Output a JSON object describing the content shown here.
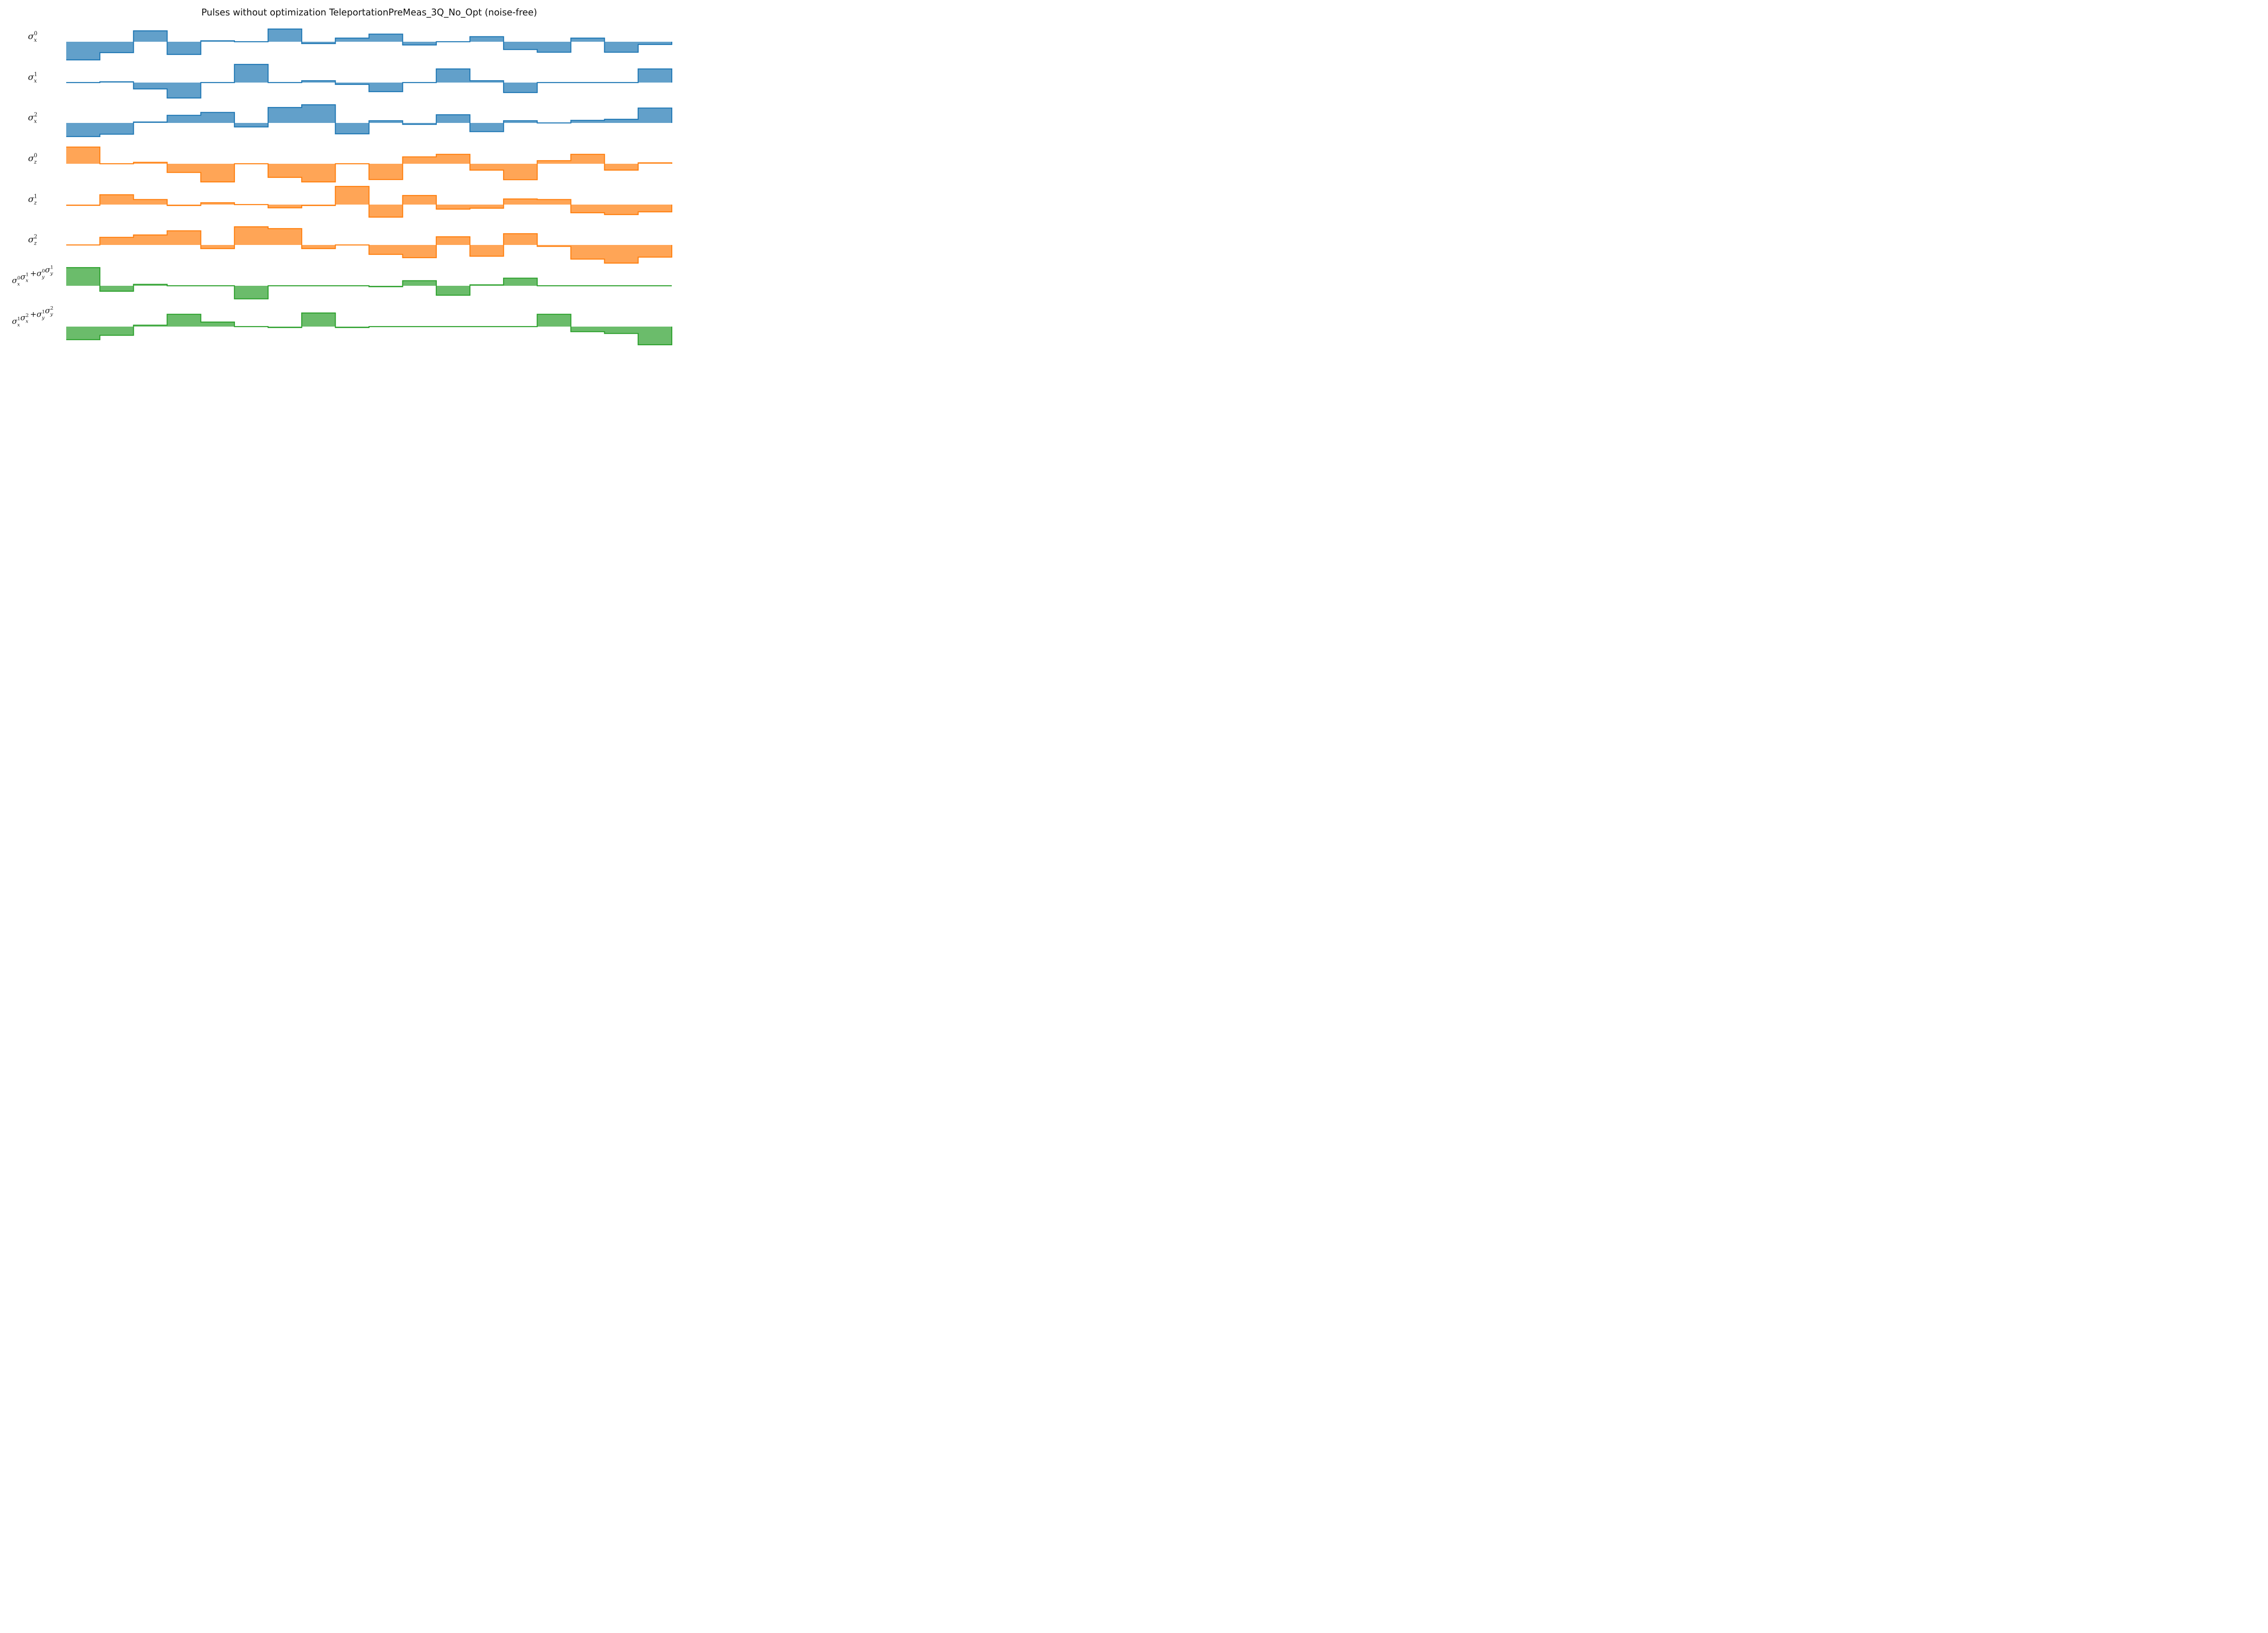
{
  "chart_data": {
    "type": "area",
    "title": "Pulses without optimization TeleportationPreMeas_3Q_No_Opt (noise-free)",
    "xlabel": "",
    "ylabel": "",
    "grid": false,
    "legend": "none",
    "x_segments": 18,
    "colors": {
      "sigma_x": "#1f77b4",
      "sigma_z": "#ff7f0e",
      "coupling": "#2ca02c"
    },
    "series": [
      {
        "label_parts": [
          {
            "base": "σ",
            "sub": "x",
            "sup": "0"
          }
        ],
        "color_key": "sigma_x",
        "values": [
          -1.0,
          -0.6,
          0.6,
          -0.7,
          0.05,
          0.0,
          0.7,
          -0.1,
          0.2,
          0.42,
          -0.18,
          0.0,
          0.28,
          -0.43,
          -0.58,
          0.2,
          -0.58,
          -0.15,
          0.0
        ]
      },
      {
        "label_parts": [
          {
            "base": "σ",
            "sub": "x",
            "sup": "1"
          }
        ],
        "color_key": "sigma_x",
        "values": [
          0.0,
          0.04,
          -0.35,
          -0.85,
          0.0,
          1.0,
          0.0,
          0.1,
          -0.1,
          -0.5,
          0.0,
          0.75,
          0.1,
          -0.55,
          0.0,
          0.0,
          0.0,
          0.75,
          0.0
        ]
      },
      {
        "label_parts": [
          {
            "base": "σ",
            "sub": "x",
            "sup": "2"
          }
        ],
        "color_key": "sigma_x",
        "values": [
          -0.75,
          -0.62,
          0.05,
          0.42,
          0.58,
          -0.22,
          0.85,
          1.0,
          -0.6,
          0.12,
          -0.08,
          0.45,
          -0.48,
          0.12,
          0.0,
          0.14,
          0.2,
          0.82,
          0.0
        ]
      },
      {
        "label_parts": [
          {
            "base": "σ",
            "sub": "z",
            "sup": "0"
          }
        ],
        "color_key": "sigma_z",
        "values": [
          0.92,
          0.0,
          0.08,
          -0.48,
          -1.0,
          0.0,
          -0.75,
          -1.0,
          0.0,
          -0.87,
          0.38,
          0.52,
          -0.35,
          -0.88,
          0.17,
          0.52,
          -0.35,
          0.05,
          0.0
        ]
      },
      {
        "label_parts": [
          {
            "base": "σ",
            "sub": "z",
            "sup": "1"
          }
        ],
        "color_key": "sigma_z",
        "values": [
          -0.04,
          0.54,
          0.28,
          -0.05,
          0.1,
          0.0,
          -0.18,
          -0.05,
          1.0,
          -0.69,
          0.5,
          -0.25,
          -0.2,
          0.31,
          0.28,
          -0.45,
          -0.55,
          -0.4,
          0.0
        ]
      },
      {
        "label_parts": [
          {
            "base": "σ",
            "sub": "z",
            "sup": "2"
          }
        ],
        "color_key": "sigma_z",
        "values": [
          0.0,
          0.42,
          0.55,
          0.78,
          -0.2,
          1.0,
          0.9,
          -0.2,
          0.0,
          -0.52,
          -0.7,
          0.45,
          -0.62,
          0.62,
          -0.08,
          -0.78,
          -1.0,
          -0.67,
          0.0
        ]
      },
      {
        "label_parts": [
          {
            "base": "σ",
            "sub": "x",
            "sup": "0"
          },
          {
            "base": "σ",
            "sub": "x",
            "sup": "1"
          },
          {
            "op": "+"
          },
          {
            "base": "σ",
            "sub": "y",
            "sup": "0"
          },
          {
            "base": "σ",
            "sub": "y",
            "sup": "1"
          }
        ],
        "color_key": "coupling",
        "values": [
          1.0,
          -0.3,
          0.08,
          0.0,
          0.0,
          -0.72,
          0.0,
          0.0,
          0.0,
          -0.05,
          0.28,
          -0.52,
          0.05,
          0.42,
          0.0,
          0.0,
          0.0,
          0.0,
          0.0
        ]
      },
      {
        "label_parts": [
          {
            "base": "σ",
            "sub": "x",
            "sup": "1"
          },
          {
            "base": "σ",
            "sub": "x",
            "sup": "2"
          },
          {
            "op": "+"
          },
          {
            "base": "σ",
            "sub": "y",
            "sup": "1"
          },
          {
            "base": "σ",
            "sub": "y",
            "sup": "2"
          }
        ],
        "color_key": "coupling",
        "values": [
          -0.72,
          -0.48,
          0.08,
          0.68,
          0.25,
          0.0,
          -0.05,
          0.75,
          -0.05,
          0.0,
          0.0,
          0.0,
          0.0,
          0.0,
          0.68,
          -0.28,
          -0.38,
          -1.0,
          0.0
        ]
      }
    ]
  }
}
